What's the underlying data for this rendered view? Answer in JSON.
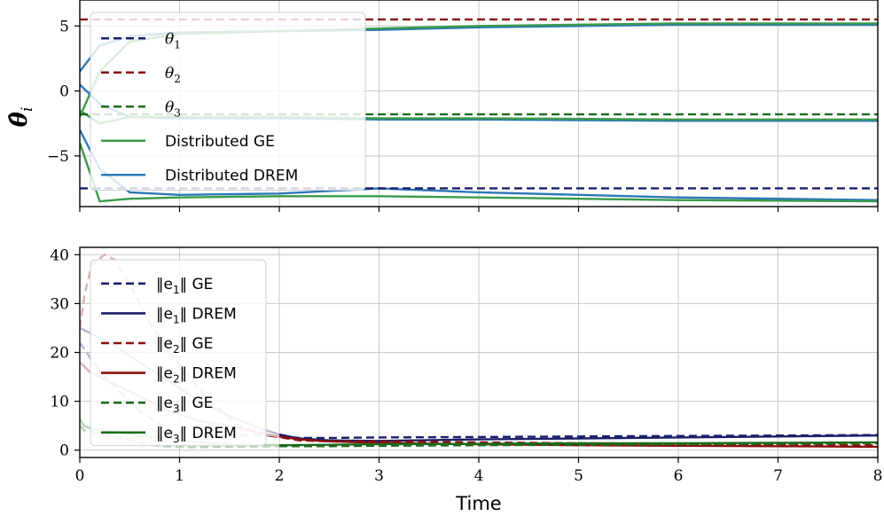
{
  "chart_data": [
    {
      "type": "line",
      "ylabel": "θ̂",
      "ylabel_sub": "i",
      "xlim": [
        0,
        8
      ],
      "ylim": [
        -8.9,
        7
      ],
      "xticks": [
        0,
        1,
        2,
        3,
        4,
        5,
        6,
        7,
        8
      ],
      "yticks": [
        5,
        0,
        -5
      ],
      "ytick_labels": [
        "5",
        "0",
        "−5"
      ],
      "grid": true,
      "legend_position": "upper-left",
      "reference_lines": [
        {
          "name": "θ",
          "sub": "1",
          "value": -7.5,
          "color": "#1b1f6b",
          "dash": true
        },
        {
          "name": "θ",
          "sub": "2",
          "value": 5.5,
          "color": "#8b0f0f",
          "dash": true
        },
        {
          "name": "θ",
          "sub": "3",
          "value": -1.8,
          "color": "#1c6b1c",
          "dash": true
        }
      ],
      "estimate_families": [
        {
          "name": "Distributed GE",
          "color": "#3c9a4a"
        },
        {
          "name": "Distributed DREM",
          "color": "#2b78b8"
        }
      ],
      "estimate_series": [
        {
          "family": 1,
          "x": [
            0,
            0.2,
            0.5,
            1,
            2,
            3,
            4,
            5,
            6,
            8
          ],
          "y": [
            1.5,
            3.5,
            4.2,
            4.5,
            4.6,
            4.7,
            4.9,
            5.0,
            5.1,
            5.1
          ]
        },
        {
          "family": 0,
          "x": [
            0,
            0.2,
            0.5,
            1,
            2,
            3,
            4,
            5,
            6,
            8
          ],
          "y": [
            -2,
            1.5,
            3.8,
            4.4,
            4.6,
            4.8,
            5.0,
            5.1,
            5.2,
            5.2
          ]
        },
        {
          "family": 1,
          "x": [
            0,
            0.2,
            0.5,
            1,
            2,
            3,
            4,
            6,
            8
          ],
          "y": [
            0.5,
            -1.0,
            -2.0,
            -2.1,
            -2.1,
            -2.2,
            -2.2,
            -2.3,
            -2.3
          ]
        },
        {
          "family": 0,
          "x": [
            0,
            0.2,
            0.5,
            1,
            2,
            3,
            4,
            6,
            8
          ],
          "y": [
            -1.5,
            -2.5,
            -2.0,
            -2.0,
            -2.0,
            -2.1,
            -2.1,
            -2.2,
            -2.2
          ]
        },
        {
          "family": 1,
          "x": [
            0,
            0.2,
            0.5,
            1,
            2,
            3,
            4,
            6,
            8
          ],
          "y": [
            -3,
            -6,
            -7.8,
            -8.0,
            -7.9,
            -7.5,
            -7.8,
            -8.2,
            -8.4
          ]
        },
        {
          "family": 0,
          "x": [
            0,
            0.2,
            0.5,
            1,
            2,
            3,
            4,
            6,
            8
          ],
          "y": [
            -4,
            -8.5,
            -8.3,
            -8.2,
            -8.1,
            -8.1,
            -8.2,
            -8.4,
            -8.5
          ]
        }
      ],
      "legend": [
        {
          "kind": "ref",
          "label": "θ",
          "sub": "1",
          "color": "#1b1f6b",
          "dash": true
        },
        {
          "kind": "ref",
          "label": "θ",
          "sub": "2",
          "color": "#8b0f0f",
          "dash": true
        },
        {
          "kind": "ref",
          "label": "θ",
          "sub": "3",
          "color": "#1c6b1c",
          "dash": true
        },
        {
          "kind": "text",
          "label": "Distributed GE",
          "color": "#3c9a4a",
          "dash": false
        },
        {
          "kind": "text",
          "label": "Distributed DREM",
          "color": "#2b78b8",
          "dash": false
        }
      ]
    },
    {
      "type": "line",
      "xlabel": "Time",
      "xlim": [
        0,
        8
      ],
      "ylim": [
        -1.5,
        41.5
      ],
      "xticks": [
        0,
        1,
        2,
        3,
        4,
        5,
        6,
        7,
        8
      ],
      "xtick_labels": [
        "0",
        "1",
        "2",
        "3",
        "4",
        "5",
        "6",
        "7",
        "8"
      ],
      "yticks": [
        40,
        30,
        20,
        10,
        0
      ],
      "ytick_labels": [
        "40",
        "30",
        "20",
        "10",
        "0"
      ],
      "grid": true,
      "legend_position": "upper-left",
      "series": [
        {
          "name_prefix": "‖e",
          "sub": "1",
          "name_suffix": "‖ GE",
          "color": "#1b1f6b",
          "dash": true,
          "faint_until": 1.9,
          "x": [
            0,
            0.1,
            0.3,
            0.6,
            0.9,
            1.2,
            1.5,
            1.8,
            2.0,
            2.2,
            2.5,
            3,
            4,
            5,
            6,
            7,
            8
          ],
          "y": [
            22,
            19,
            14,
            8,
            4,
            3,
            3,
            3,
            2.8,
            2.5,
            2.5,
            2.6,
            2.7,
            2.8,
            2.9,
            3.0,
            3.1
          ]
        },
        {
          "name_prefix": "‖e",
          "sub": "1",
          "name_suffix": "‖ DREM",
          "color": "#1b1f6b",
          "dash": false,
          "faint_until": 1.9,
          "x": [
            0,
            0.1,
            0.3,
            0.6,
            0.9,
            1.2,
            1.5,
            1.8,
            2.0,
            2.2,
            2.5,
            3,
            4,
            5,
            6,
            7,
            8
          ],
          "y": [
            25,
            24,
            22,
            18,
            14,
            10,
            7,
            4.5,
            3.2,
            2.4,
            2.0,
            1.9,
            2.2,
            2.4,
            2.6,
            2.8,
            3.0
          ]
        },
        {
          "name_prefix": "‖e",
          "sub": "2",
          "name_suffix": "‖ GE",
          "color": "#8b0f0f",
          "dash": true,
          "faint_until": 1.9,
          "x": [
            0,
            0.05,
            0.12,
            0.25,
            0.35,
            0.5,
            0.7,
            0.9,
            1.1,
            1.3,
            1.6,
            1.9,
            2.2,
            2.5,
            3,
            4,
            5,
            6,
            7,
            8
          ],
          "y": [
            25,
            32,
            38,
            40,
            39,
            34,
            26,
            20,
            15,
            10,
            5,
            3,
            2,
            1.8,
            1.8,
            1.6,
            1.4,
            1.3,
            1.2,
            1.0
          ]
        },
        {
          "name_prefix": "‖e",
          "sub": "2",
          "name_suffix": "‖ DREM",
          "color": "#8b0f0f",
          "dash": false,
          "faint_until": 1.9,
          "x": [
            0,
            0.1,
            0.3,
            0.6,
            0.9,
            1.2,
            1.5,
            1.8,
            2.0,
            2.2,
            2.5,
            3,
            4,
            5,
            6,
            7,
            8
          ],
          "y": [
            18,
            16,
            14,
            11,
            8,
            6,
            5,
            3.5,
            2.8,
            2.2,
            1.8,
            1.5,
            1.2,
            1.0,
            0.9,
            0.8,
            0.7
          ]
        },
        {
          "name_prefix": "‖e",
          "sub": "3",
          "name_suffix": "‖ GE",
          "color": "#1c6b1c",
          "dash": true,
          "faint_until": 1.9,
          "x": [
            0,
            0.05,
            0.2,
            0.5,
            0.8,
            1.1,
            1.5,
            2.0,
            2.5,
            3,
            4,
            5,
            6,
            7,
            8
          ],
          "y": [
            5,
            4,
            3.5,
            2,
            0.8,
            0.6,
            0.7,
            0.8,
            0.8,
            0.9,
            1.0,
            1.1,
            1.2,
            1.3,
            1.4
          ]
        },
        {
          "name_prefix": "‖e",
          "sub": "3",
          "name_suffix": "‖ DREM",
          "color": "#1c6b1c",
          "dash": false,
          "faint_until": 1.9,
          "x": [
            0,
            0.04,
            0.1,
            0.3,
            0.6,
            1.0,
            1.5,
            2.0,
            2.5,
            3,
            4,
            5,
            6,
            7,
            8
          ],
          "y": [
            6.5,
            5,
            4.5,
            4,
            3,
            2,
            1.2,
            1.0,
            1.1,
            1.2,
            1.3,
            1.4,
            1.4,
            1.5,
            1.6
          ]
        }
      ]
    }
  ]
}
